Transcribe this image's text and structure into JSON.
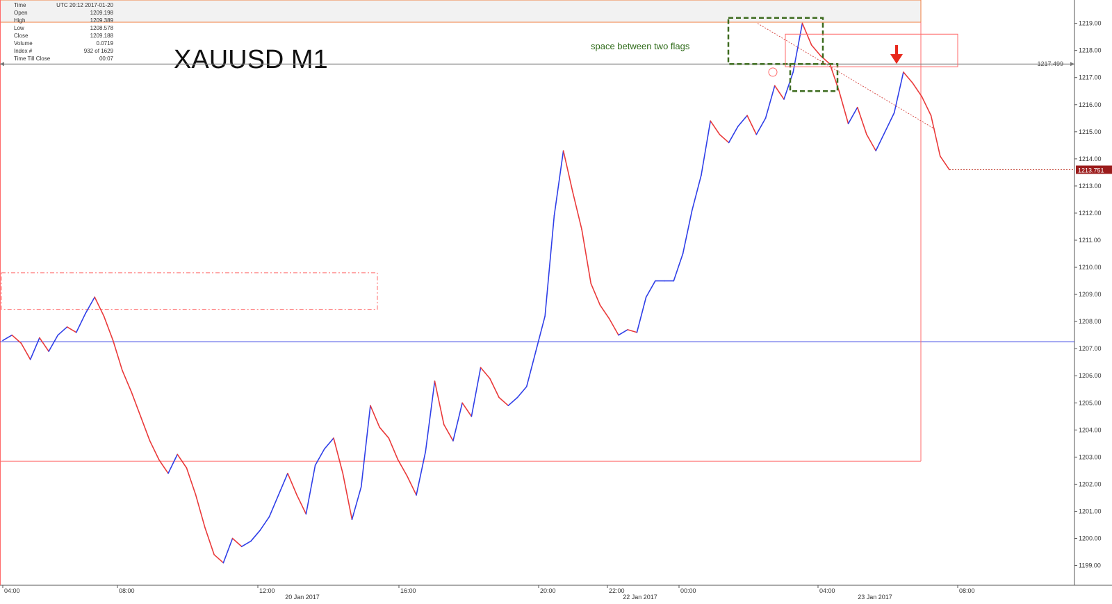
{
  "chart_data": {
    "type": "line",
    "title": "XAUUSD M1",
    "annotation_text": "space between two flags",
    "info_panel": [
      {
        "label": "Time",
        "value": "UTC 20:12 2017-01-20"
      },
      {
        "label": "Open",
        "value": "1209.198"
      },
      {
        "label": "High",
        "value": "1209.389"
      },
      {
        "label": "Low",
        "value": "1208.578"
      },
      {
        "label": "Close",
        "value": "1209.188"
      },
      {
        "label": "Volume",
        "value": "0.0719"
      },
      {
        "label": "Index #",
        "value": "932 of 1629"
      },
      {
        "label": "Time Till Close",
        "value": "00:07"
      }
    ],
    "y_ticks": [
      "1219.00",
      "1218.00",
      "1217.00",
      "1216.00",
      "1215.00",
      "1214.00",
      "1213.00",
      "1212.00",
      "1211.00",
      "1210.00",
      "1209.00",
      "1208.00",
      "1207.00",
      "1206.00",
      "1205.00",
      "1204.00",
      "1203.00",
      "1202.00",
      "1201.00",
      "1200.00",
      "1199.00"
    ],
    "ylim": [
      1198.4,
      1219.4
    ],
    "x_ticks": [
      "04:00",
      "08:00",
      "12:00",
      "16:00",
      "20:00",
      "22:00",
      "00:00",
      "04:00",
      "08:00"
    ],
    "date_labels": [
      "20 Jan 2017",
      "22 Jan 2017",
      "23 Jan 2017"
    ],
    "price_markers": {
      "horizontal_line": "1217.499",
      "current_price": "1213.751"
    },
    "levels": {
      "blue_support": 1207.25,
      "red_box_low": 1202.85
    },
    "series": [
      {
        "values": [
          1207.3,
          1207.5,
          1207.2,
          1206.6,
          1207.4,
          1206.9,
          1207.5,
          1207.8,
          1207.6,
          1208.3,
          1208.9,
          1208.2,
          1207.3,
          1206.2,
          1205.4,
          1204.5,
          1203.6,
          1202.9,
          1202.4,
          1203.1,
          1202.6,
          1201.6,
          1200.4,
          1199.4,
          1199.1,
          1200.0,
          1199.7,
          1199.9,
          1200.3,
          1200.8,
          1201.6,
          1202.4,
          1201.6,
          1200.9,
          1202.7,
          1203.3,
          1203.7,
          1202.4,
          1200.7,
          1201.9,
          1204.9,
          1204.1,
          1203.7,
          1202.9,
          1202.3,
          1201.6,
          1203.2,
          1205.8,
          1204.2,
          1203.6,
          1205.0,
          1204.5,
          1206.3,
          1205.9,
          1205.2,
          1204.9,
          1205.2,
          1205.6,
          1206.9,
          1208.2,
          1211.9,
          1214.3,
          1212.8,
          1211.4,
          1209.4,
          1208.6,
          1208.1,
          1207.5,
          1207.7,
          1207.6,
          1208.9,
          1209.5,
          1209.5,
          1209.5,
          1210.5,
          1212.1,
          1213.4,
          1215.4,
          1214.9,
          1214.6,
          1215.2,
          1215.6,
          1214.9,
          1215.5,
          1216.7,
          1216.2,
          1217.2,
          1219.0,
          1218.2,
          1217.8,
          1217.5,
          1216.5,
          1215.3,
          1215.9,
          1214.9,
          1214.3,
          1215.0,
          1215.7,
          1217.2,
          1216.8,
          1216.3,
          1215.6,
          1214.1,
          1213.6
        ]
      }
    ]
  }
}
